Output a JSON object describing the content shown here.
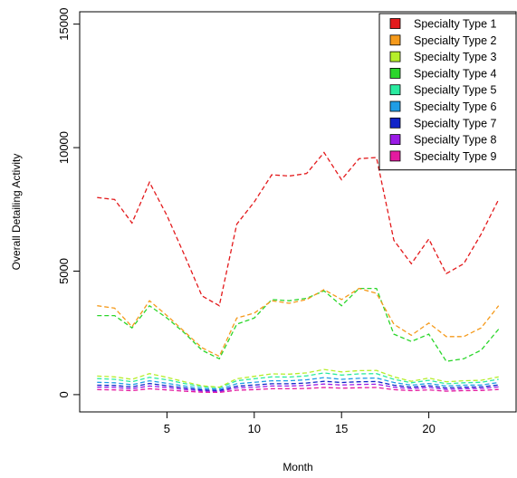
{
  "chart_data": {
    "type": "line",
    "title": "",
    "xlabel": "Month",
    "ylabel": "Overall Detailing Activity",
    "xlim": [
      0,
      25
    ],
    "ylim": [
      -700,
      15500
    ],
    "x_ticks": [
      5,
      10,
      15,
      20
    ],
    "y_ticks": [
      0,
      5000,
      10000,
      15000
    ],
    "legend_position": "top-right",
    "line_style": "dashed",
    "grid": false,
    "x": [
      1,
      2,
      3,
      4,
      5,
      6,
      7,
      8,
      9,
      10,
      11,
      12,
      13,
      14,
      15,
      16,
      17,
      18,
      19,
      20,
      21,
      22,
      23,
      24
    ],
    "series": [
      {
        "name": "Specialty Type 1",
        "color": "#e31a1c",
        "values": [
          7980,
          7900,
          6950,
          8600,
          7250,
          5650,
          4000,
          3600,
          6900,
          7800,
          8900,
          8850,
          8950,
          9800,
          8700,
          9550,
          9600,
          6250,
          5300,
          6300,
          4900,
          5300,
          6500,
          7900
        ]
      },
      {
        "name": "Specialty Type 2",
        "color": "#f59a1b",
        "values": [
          3600,
          3500,
          2750,
          3800,
          3200,
          2550,
          1900,
          1550,
          3100,
          3300,
          3800,
          3700,
          3850,
          4250,
          3850,
          4300,
          4100,
          2850,
          2400,
          2900,
          2350,
          2350,
          2700,
          3600
        ]
      },
      {
        "name": "Specialty Type 3",
        "color": "#b5ee2a",
        "values": [
          750,
          720,
          620,
          850,
          700,
          520,
          360,
          300,
          640,
          740,
          840,
          830,
          880,
          1020,
          920,
          970,
          980,
          720,
          540,
          670,
          520,
          560,
          580,
          720
        ]
      },
      {
        "name": "Specialty Type 4",
        "color": "#2bd62b",
        "values": [
          3200,
          3200,
          2700,
          3600,
          3100,
          2500,
          1800,
          1450,
          2850,
          3100,
          3850,
          3800,
          3900,
          4200,
          3600,
          4300,
          4300,
          2450,
          2150,
          2450,
          1350,
          1450,
          1800,
          2650
        ]
      },
      {
        "name": "Specialty Type 5",
        "color": "#2aeba0",
        "values": [
          650,
          620,
          520,
          700,
          600,
          450,
          320,
          280,
          560,
          640,
          720,
          710,
          760,
          880,
          790,
          840,
          850,
          620,
          480,
          580,
          440,
          480,
          500,
          620
        ]
      },
      {
        "name": "Specialty Type 6",
        "color": "#1f9de6",
        "values": [
          500,
          480,
          400,
          560,
          460,
          350,
          250,
          220,
          440,
          500,
          560,
          560,
          600,
          690,
          620,
          660,
          670,
          490,
          380,
          450,
          350,
          380,
          390,
          490
        ]
      },
      {
        "name": "Specialty Type 7",
        "color": "#1024c8",
        "values": [
          380,
          370,
          310,
          450,
          360,
          270,
          190,
          170,
          340,
          390,
          440,
          440,
          470,
          540,
          490,
          520,
          530,
          380,
          300,
          360,
          270,
          300,
          310,
          390
        ]
      },
      {
        "name": "Specialty Type 8",
        "color": "#9b1be6",
        "values": [
          300,
          290,
          240,
          350,
          290,
          210,
          150,
          130,
          270,
          300,
          350,
          350,
          370,
          430,
          390,
          410,
          420,
          300,
          240,
          290,
          210,
          240,
          250,
          310
        ]
      },
      {
        "name": "Specialty Type 9",
        "color": "#e31aa0",
        "values": [
          200,
          190,
          160,
          240,
          190,
          140,
          100,
          90,
          180,
          200,
          240,
          240,
          250,
          290,
          260,
          280,
          290,
          200,
          160,
          190,
          140,
          160,
          170,
          210
        ]
      }
    ]
  }
}
